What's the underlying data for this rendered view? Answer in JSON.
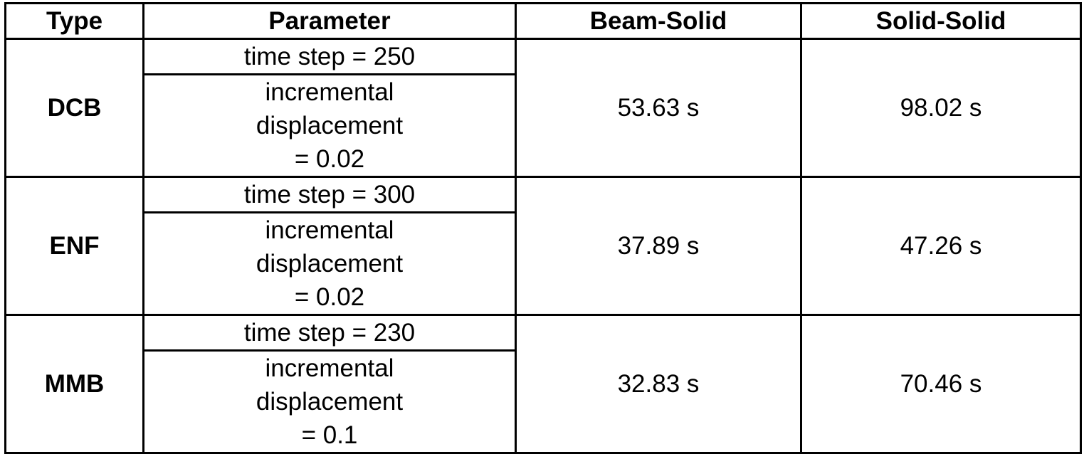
{
  "table": {
    "headers": [
      "Type",
      "Parameter",
      "Beam-Solid",
      "Solid-Solid"
    ],
    "rows": [
      {
        "type": "DCB",
        "param1": "time step = 250",
        "param2_lines": [
          "incremental",
          "displacement",
          "= 0.02"
        ],
        "beam_solid": "53.63 s",
        "solid_solid": "98.02 s"
      },
      {
        "type": "ENF",
        "param1": "time step = 300",
        "param2_lines": [
          "incremental",
          "displacement",
          "= 0.02"
        ],
        "beam_solid": "37.89 s",
        "solid_solid": "47.26 s"
      },
      {
        "type": "MMB",
        "param1": "time step = 230",
        "param2_lines": [
          "incremental",
          "displacement",
          "= 0.1"
        ],
        "beam_solid": "32.83 s",
        "solid_solid": "70.46 s"
      }
    ]
  }
}
